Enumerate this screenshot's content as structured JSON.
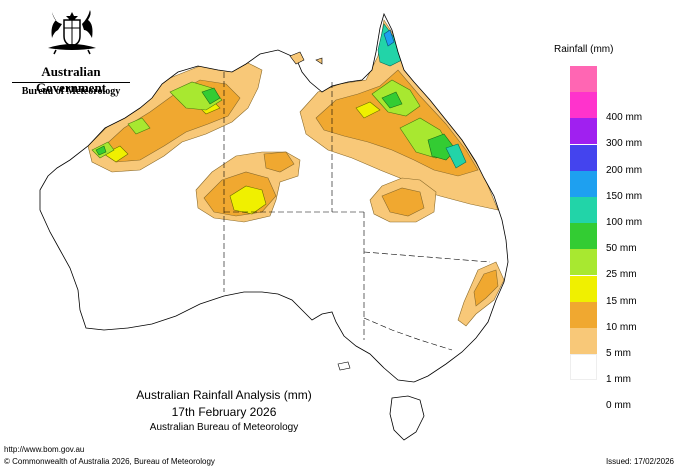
{
  "header": {
    "government": "Australian Government",
    "bureau": "Bureau of Meteorology"
  },
  "legend": {
    "title": "Rainfall (mm)",
    "items": [
      {
        "label": "",
        "color": "#ff66b3"
      },
      {
        "label": "400 mm",
        "color": "#ff33cc"
      },
      {
        "label": "300 mm",
        "color": "#a020f0"
      },
      {
        "label": "200 mm",
        "color": "#4444ee"
      },
      {
        "label": "150 mm",
        "color": "#1ea0f0"
      },
      {
        "label": "100 mm",
        "color": "#22d4a8"
      },
      {
        "label": "50 mm",
        "color": "#33cc33"
      },
      {
        "label": "25 mm",
        "color": "#a8e830"
      },
      {
        "label": "15 mm",
        "color": "#f0f000"
      },
      {
        "label": "10 mm",
        "color": "#f0a830"
      },
      {
        "label": "5 mm",
        "color": "#f8c878"
      },
      {
        "label": "1 mm",
        "color": "#ffffff"
      },
      {
        "label": "0 mm",
        "color": ""
      }
    ]
  },
  "caption": {
    "line1": "Australian Rainfall Analysis (mm)",
    "line2": "17th February 2026",
    "line3": "Australian Bureau of Meteorology"
  },
  "footer": {
    "url": "http://www.bom.gov.au",
    "copyright": "© Commonwealth of Australia 2026, Bureau of Meteorology",
    "issued": "Issued: 17/02/2026"
  },
  "colors": {
    "light_orange": "#f8c878",
    "orange": "#f0a830",
    "yellow": "#f0f000",
    "light_green": "#a8e830",
    "green": "#33cc33",
    "teal": "#22d4a8",
    "blue": "#1ea0f0",
    "outline": "#000000"
  }
}
